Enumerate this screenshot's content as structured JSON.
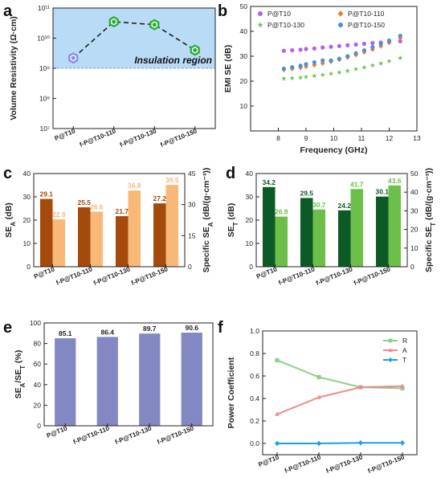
{
  "chart_data": [
    {
      "id": "a",
      "panel_label": "a",
      "type": "scatter",
      "ylabel": "Volume Resistivity (Ω·cm)",
      "y_scale": "log",
      "ylim": [
        10000000.0,
        100000000000.0
      ],
      "y_tick_labels": [
        "10⁷",
        "10⁸",
        "10⁹",
        "10¹⁰",
        "10¹¹"
      ],
      "categories": [
        "P@T10",
        "f-P@T10-110",
        "f-P@T10-130",
        "f-P@T10-150"
      ],
      "values": [
        2200000000.0,
        35000000000.0,
        28000000000.0,
        4000000000.0
      ],
      "colors": [
        "#8c8cf0",
        "#2bb03a",
        "#2bb03a",
        "#2bb03a"
      ],
      "region": {
        "label": "Insulation region",
        "from": 1000000000.0,
        "to": 100000000000.0,
        "color": "#b9dbf5"
      }
    },
    {
      "id": "b",
      "panel_label": "b",
      "type": "scatter",
      "xlabel": "Frequency (GHz)",
      "ylabel": "EMI SE (dB)",
      "xlim": [
        7,
        13
      ],
      "ylim": [
        0,
        50
      ],
      "x_ticks": [
        8,
        9,
        10,
        11,
        12,
        13
      ],
      "y_ticks": [
        10,
        20,
        30,
        40,
        50
      ],
      "legend": "top",
      "series": [
        {
          "name": "P@T10",
          "color": "#b65fe8",
          "marker": "circle",
          "x": [
            8.2,
            8.5,
            8.8,
            9.0,
            9.3,
            9.6,
            9.9,
            10.2,
            10.5,
            10.8,
            11.1,
            11.4,
            11.7,
            12.0,
            12.4
          ],
          "y": [
            32.2,
            32.4,
            32.6,
            32.9,
            33.1,
            33.5,
            33.8,
            34.1,
            34.4,
            34.7,
            35.0,
            35.3,
            35.5,
            35.7,
            36.0
          ]
        },
        {
          "name": "P@T10-110",
          "color": "#f07a2a",
          "marker": "diamond",
          "x": [
            8.2,
            8.5,
            8.8,
            9.0,
            9.3,
            9.6,
            9.9,
            10.2,
            10.5,
            10.8,
            11.1,
            11.4,
            11.7,
            12.0,
            12.4
          ],
          "y": [
            24.6,
            25.0,
            25.5,
            25.9,
            26.5,
            27.2,
            27.9,
            28.7,
            29.6,
            30.6,
            31.7,
            32.8,
            34.1,
            35.5,
            37.4
          ]
        },
        {
          "name": "P@T10-130",
          "color": "#6cc04a",
          "marker": "star",
          "x": [
            8.2,
            8.5,
            8.8,
            9.0,
            9.3,
            9.6,
            9.9,
            10.2,
            10.5,
            10.8,
            11.1,
            11.4,
            11.7,
            12.0,
            12.4
          ],
          "y": [
            21.0,
            21.2,
            21.4,
            21.7,
            22.1,
            22.5,
            23.0,
            23.5,
            24.1,
            24.8,
            25.5,
            26.3,
            27.1,
            28.0,
            29.3
          ]
        },
        {
          "name": "P@T10-150",
          "color": "#4a90d9",
          "marker": "circle",
          "x": [
            8.2,
            8.5,
            8.8,
            9.0,
            9.3,
            9.6,
            9.9,
            10.2,
            10.5,
            10.8,
            11.1,
            11.4,
            11.7,
            12.0,
            12.4
          ],
          "y": [
            25.0,
            25.6,
            26.2,
            26.8,
            27.6,
            28.3,
            28.3,
            29.0,
            30.0,
            31.2,
            32.4,
            33.7,
            35.0,
            36.3,
            38.2
          ]
        }
      ]
    },
    {
      "id": "c",
      "panel_label": "c",
      "type": "bar",
      "categories": [
        "P@T10",
        "f-P@T10-110",
        "f-P@T10-130",
        "f-P@T10-150"
      ],
      "ylabel": "SE_A (dB)",
      "ylim": [
        0,
        40
      ],
      "y_ticks": [
        0,
        10,
        20,
        30,
        40
      ],
      "y2label": "Specific SE_A (dB/(g·cm⁻³))",
      "y2lim": [
        0,
        45
      ],
      "y2_ticks": [
        0,
        15,
        30,
        45
      ],
      "series": [
        {
          "name": "SE_A",
          "axis": "left",
          "color": "#a34a0c",
          "values": [
            29.1,
            25.5,
            21.7,
            27.2
          ],
          "labels": [
            "29.1",
            "25.5",
            "21.7",
            "27.2"
          ]
        },
        {
          "name": "Specific SE_A",
          "axis": "right",
          "color": "#f8b878",
          "values": [
            22.9,
            26.6,
            36.8,
            39.5
          ],
          "labels": [
            "22.9",
            "26.6",
            "36.8",
            "39.5"
          ]
        }
      ]
    },
    {
      "id": "d",
      "panel_label": "d",
      "type": "bar",
      "categories": [
        "P@T10",
        "f-P@T10-110",
        "f-P@T10-130",
        "f-P@T10-150"
      ],
      "ylabel": "SE_T (dB)",
      "ylim": [
        0,
        40
      ],
      "y_ticks": [
        0,
        10,
        20,
        30,
        40
      ],
      "y2label": "Specific SE_T (dB/(g·cm⁻³))",
      "y2lim": [
        0,
        50
      ],
      "y2_ticks": [
        0,
        10,
        20,
        30,
        40,
        50
      ],
      "series": [
        {
          "name": "SE_T",
          "axis": "left",
          "color": "#0e5a26",
          "values": [
            34.2,
            29.5,
            24.2,
            30.1
          ],
          "labels": [
            "34.2",
            "29.5",
            "24.2",
            "30.1"
          ]
        },
        {
          "name": "Specific SE_T",
          "axis": "right",
          "color": "#6cc04a",
          "values": [
            26.9,
            30.7,
            41.7,
            43.6
          ],
          "labels": [
            "26.9",
            "30.7",
            "41.7",
            "43.6"
          ]
        }
      ]
    },
    {
      "id": "e",
      "panel_label": "e",
      "type": "bar",
      "categories": [
        "P@T10",
        "f-P@T10-110",
        "f-P@T10-130",
        "f-P@T10-150"
      ],
      "ylabel": "SE_A/SE_T (%)",
      "ylim": [
        0,
        100
      ],
      "y_ticks": [
        0,
        20,
        40,
        60,
        80,
        100
      ],
      "color": "#8488c2",
      "values": [
        85.1,
        86.4,
        89.7,
        90.6
      ],
      "labels": [
        "85.1",
        "86.4",
        "89.7",
        "90.6"
      ]
    },
    {
      "id": "f",
      "panel_label": "f",
      "type": "line",
      "categories": [
        "P@T10",
        "f-P@T10-110",
        "f-P@T10-130",
        "f-P@T10-150"
      ],
      "ylabel": "Power Coefficient",
      "ylim": [
        -0.1,
        1.0
      ],
      "y_ticks": [
        "0.0",
        "0.2",
        "0.4",
        "0.6",
        "0.8",
        "1.0"
      ],
      "legend": "top-right",
      "series": [
        {
          "name": "R",
          "color": "#8fcf8a",
          "marker": "square",
          "values": [
            0.74,
            0.59,
            0.5,
            0.49
          ]
        },
        {
          "name": "A",
          "color": "#f08a8a",
          "marker": "triangle",
          "values": [
            0.26,
            0.41,
            0.5,
            0.51
          ]
        },
        {
          "name": "T",
          "color": "#1aa0e8",
          "marker": "diamond",
          "values": [
            0.0,
            0.0,
            0.005,
            0.005
          ]
        }
      ]
    }
  ]
}
